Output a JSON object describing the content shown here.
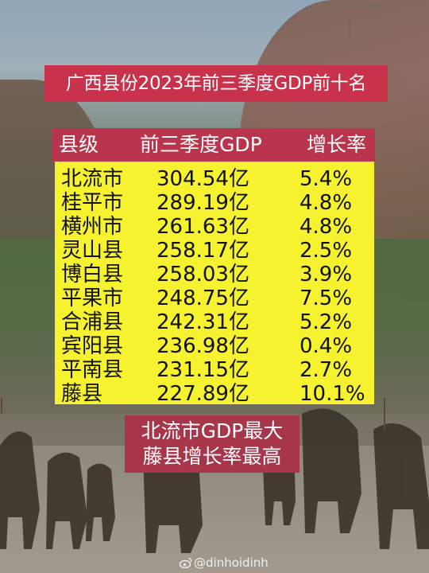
{
  "title": "广西县份2023年前三季度GDP前十名",
  "table": {
    "headers": {
      "county": "县级",
      "gdp": "前三季度GDP",
      "growth": "增长率"
    },
    "rows": [
      {
        "county": "北流市",
        "gdp": "304.54亿",
        "growth": "5.4%"
      },
      {
        "county": "桂平市",
        "gdp": "289.19亿",
        "growth": "4.8%"
      },
      {
        "county": "横州市",
        "gdp": "261.63亿",
        "growth": "4.8%"
      },
      {
        "county": "灵山县",
        "gdp": "258.17亿",
        "growth": "2.5%"
      },
      {
        "county": "博白县",
        "gdp": "258.03亿",
        "growth": "3.9%"
      },
      {
        "county": "平果市",
        "gdp": "248.75亿",
        "growth": "7.5%"
      },
      {
        "county": "合浦县",
        "gdp": "242.31亿",
        "growth": "5.2%"
      },
      {
        "county": "宾阳县",
        "gdp": "236.98亿",
        "growth": "0.4%"
      },
      {
        "county": "平南县",
        "gdp": "231.15亿",
        "growth": "2.7%"
      },
      {
        "county": "藤县",
        "gdp": "227.89亿",
        "growth": "10.1%"
      }
    ]
  },
  "summary": {
    "line1": "北流市GDP最大",
    "line2": "藤县增长率最高"
  },
  "watermark": {
    "handle": "@dinhoidinh",
    "icon": "weibo-icon"
  },
  "colors": {
    "title_bg": "#c8334b",
    "header_bg": "#b9354d",
    "table_bg": "#f7f230",
    "summary_bg": "#a8364a"
  }
}
